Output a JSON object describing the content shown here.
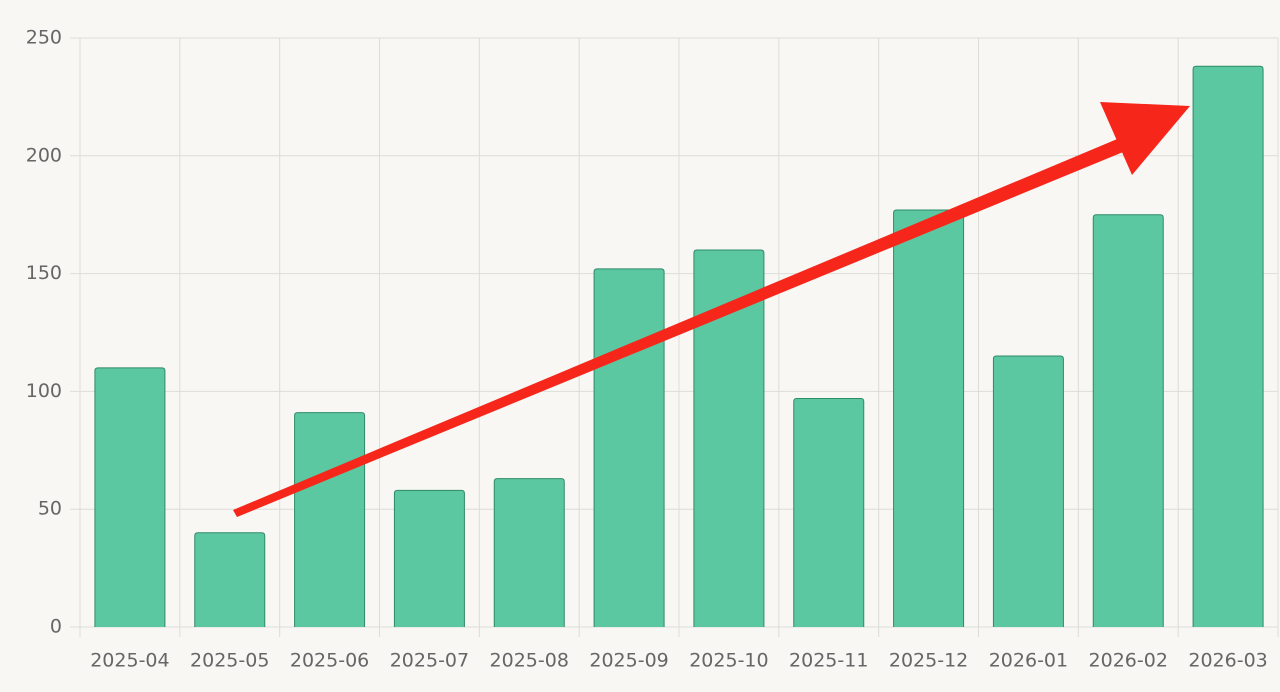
{
  "chart_data": {
    "type": "bar",
    "categories": [
      "2025-04",
      "2025-05",
      "2025-06",
      "2025-07",
      "2025-08",
      "2025-09",
      "2025-10",
      "2025-11",
      "2025-12",
      "2026-01",
      "2026-02",
      "2026-03"
    ],
    "values": [
      110,
      40,
      91,
      58,
      63,
      152,
      160,
      97,
      177,
      115,
      175,
      238
    ],
    "color": "#5cc8a2",
    "ylim": [
      0,
      250
    ],
    "yticks": [
      0,
      50,
      100,
      150,
      200,
      250
    ],
    "grid": true
  }
}
